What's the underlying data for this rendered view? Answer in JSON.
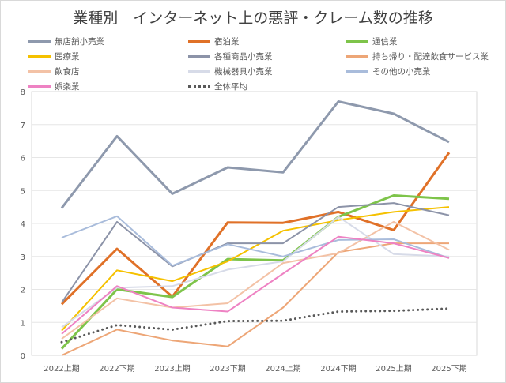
{
  "chart_data": {
    "type": "line",
    "title": "業種別　インターネット上の悪評・クレーム数の推移",
    "categories": [
      "2022上期",
      "2022下期",
      "2023上期",
      "2023下期",
      "2024上期",
      "2024下期",
      "2025上期",
      "2025下期"
    ],
    "ylim": [
      0,
      8
    ],
    "yticks": [
      "0",
      "1",
      "2",
      "3",
      "4",
      "5",
      "6",
      "7",
      "8"
    ],
    "grid": true,
    "legend_position": "top",
    "series": [
      {
        "name": "無店舗小売業",
        "color": "#8e99ad",
        "width": 3,
        "values": [
          4.47,
          6.65,
          4.9,
          5.7,
          5.55,
          7.7,
          7.33,
          6.47
        ]
      },
      {
        "name": "宿泊業",
        "color": "#e07128",
        "width": 3,
        "values": [
          1.55,
          3.23,
          1.78,
          4.03,
          4.02,
          4.35,
          3.8,
          6.15
        ]
      },
      {
        "name": "通信業",
        "color": "#7ec44a",
        "width": 3,
        "values": [
          0.2,
          2.0,
          1.77,
          2.92,
          2.88,
          4.2,
          4.85,
          4.75
        ]
      },
      {
        "name": "医療業",
        "color": "#f5c100",
        "width": 2,
        "values": [
          0.75,
          2.58,
          2.25,
          2.85,
          3.78,
          4.1,
          4.35,
          4.5
        ]
      },
      {
        "name": "各種商品小売業",
        "color": "#8c93a8",
        "width": 2,
        "values": [
          1.6,
          4.05,
          2.7,
          3.4,
          3.4,
          4.5,
          4.62,
          4.25
        ]
      },
      {
        "name": "持ち帰り・配達飲食サービス業",
        "color": "#eda677",
        "width": 2,
        "values": [
          0.0,
          0.78,
          0.45,
          0.27,
          1.45,
          3.13,
          3.4,
          3.4
        ]
      },
      {
        "name": "飲食店",
        "color": "#f3c2a6",
        "width": 2,
        "values": [
          0.5,
          1.73,
          1.45,
          1.58,
          2.8,
          3.1,
          4.05,
          3.2
        ]
      },
      {
        "name": "機械器具小売業",
        "color": "#d7dbe8",
        "width": 2,
        "values": [
          0.85,
          2.05,
          2.1,
          2.6,
          2.85,
          4.2,
          3.07,
          3.0
        ]
      },
      {
        "name": "その他の小売業",
        "color": "#a9bcdb",
        "width": 2,
        "values": [
          3.57,
          4.22,
          2.72,
          3.37,
          3.0,
          3.5,
          3.52,
          2.95
        ]
      },
      {
        "name": "娯楽業",
        "color": "#ee82c3",
        "width": 2,
        "values": [
          0.65,
          2.1,
          1.45,
          1.33,
          2.48,
          3.6,
          3.4,
          2.95
        ]
      },
      {
        "name": "全体平均",
        "color": "#595959",
        "width": 3,
        "dotted": true,
        "values": [
          0.4,
          0.92,
          0.78,
          1.04,
          1.05,
          1.33,
          1.35,
          1.42
        ]
      }
    ]
  }
}
